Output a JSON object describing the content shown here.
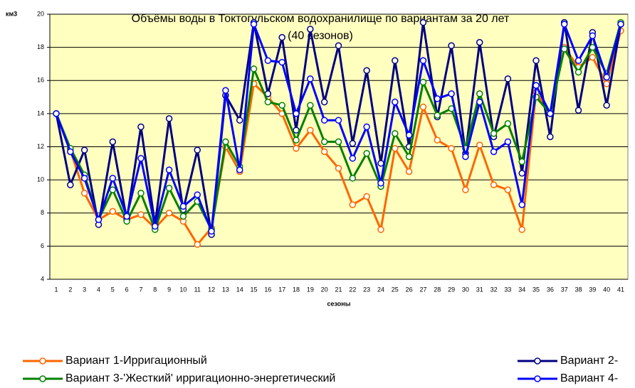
{
  "chart_data": {
    "type": "line",
    "title": [
      "Объёмы воды в Токтогульском водохранилище по вариантам за 20 лет",
      "(40 сезонов)"
    ],
    "y_label": "км3",
    "x_label": "сезоны",
    "categories": [
      "1",
      "2",
      "3",
      "4",
      "5",
      "6",
      "7",
      "8",
      "9",
      "10",
      "11",
      "12",
      "13",
      "14",
      "15",
      "16",
      "17",
      "18",
      "19",
      "20",
      "21",
      "22",
      "23",
      "24",
      "25",
      "26",
      "27",
      "28",
      "29",
      "30",
      "31",
      "32",
      "33",
      "34",
      "35",
      "36",
      "37",
      "38",
      "39",
      "40",
      "41"
    ],
    "ylim": [
      4,
      20
    ],
    "yticks": [
      4,
      6,
      8,
      10,
      12,
      14,
      16,
      18,
      20
    ],
    "grid": true,
    "series": [
      {
        "name": "Вариант 1-Ирригационный",
        "color": "#ff6600",
        "values": [
          14,
          11.8,
          9.2,
          7.6,
          8.1,
          7.6,
          7.9,
          7.1,
          8.0,
          7.5,
          6.1,
          7.1,
          12.0,
          10.5,
          15.8,
          15.0,
          14.0,
          11.9,
          13.0,
          11.7,
          10.7,
          8.5,
          9.0,
          7.0,
          11.9,
          10.5,
          14.4,
          12.4,
          11.9,
          9.4,
          12.1,
          9.7,
          9.4,
          7.0,
          15.3,
          14.0,
          18.0,
          16.8,
          17.4,
          15.8,
          19.0
        ]
      },
      {
        "name": "Вариант 2-",
        "color": "#000080",
        "values": [
          14,
          9.7,
          11.8,
          7.3,
          12.3,
          7.6,
          13.2,
          7.3,
          13.7,
          8.2,
          11.8,
          6.7,
          15.1,
          13.6,
          19.5,
          15.2,
          18.6,
          13.0,
          19.1,
          14.7,
          18.1,
          12.2,
          16.6,
          11.0,
          17.2,
          12.0,
          19.5,
          13.8,
          18.1,
          11.6,
          18.3,
          12.6,
          16.1,
          10.4,
          17.2,
          12.6,
          19.5,
          14.2,
          18.9,
          14.5,
          19.4
        ]
      },
      {
        "name": "Вариант 3-'Жесткий' ирригационно-энергетический",
        "color": "#008000",
        "values": [
          14,
          11.9,
          10.3,
          7.6,
          9.4,
          7.5,
          9.2,
          7.0,
          9.5,
          7.8,
          8.7,
          7.0,
          12.3,
          10.8,
          16.7,
          14.7,
          14.5,
          12.4,
          14.5,
          12.3,
          12.3,
          10.1,
          11.6,
          9.6,
          12.8,
          11.4,
          15.9,
          13.9,
          14.3,
          11.9,
          15.2,
          12.8,
          13.4,
          11.1,
          15.0,
          14.0,
          17.9,
          16.5,
          18.0,
          16.4,
          19.5
        ]
      },
      {
        "name": "Вариант 4-",
        "color": "#0000ff",
        "values": [
          14,
          11.7,
          10.1,
          7.6,
          10.1,
          7.8,
          11.3,
          7.2,
          10.6,
          8.4,
          9.1,
          6.9,
          15.4,
          10.6,
          19.4,
          17.2,
          17.1,
          14.0,
          16.1,
          13.6,
          13.6,
          11.3,
          13.2,
          9.8,
          14.7,
          12.7,
          17.2,
          14.9,
          15.2,
          11.4,
          14.7,
          11.7,
          12.3,
          8.5,
          15.7,
          14.0,
          19.4,
          17.2,
          18.7,
          16.2,
          19.4
        ]
      }
    ]
  }
}
